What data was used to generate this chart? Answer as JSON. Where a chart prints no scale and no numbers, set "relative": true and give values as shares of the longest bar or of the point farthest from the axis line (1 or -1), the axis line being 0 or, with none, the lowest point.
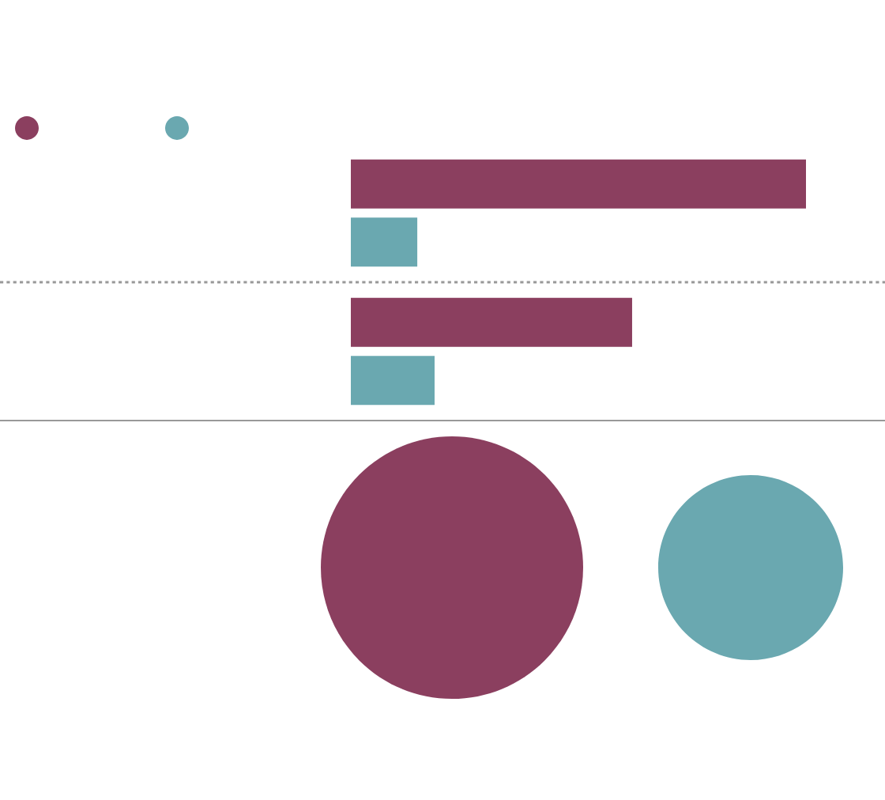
{
  "chart_data": {
    "type": "bar",
    "orientation": "horizontal",
    "relative": true,
    "categories": [
      null,
      null
    ],
    "series": [
      {
        "color": "#8b3f5f",
        "values": [
          1,
          0.618
        ]
      },
      {
        "color": "#6aa8b0",
        "values": [
          0.146,
          0.184
        ]
      }
    ]
  }
}
